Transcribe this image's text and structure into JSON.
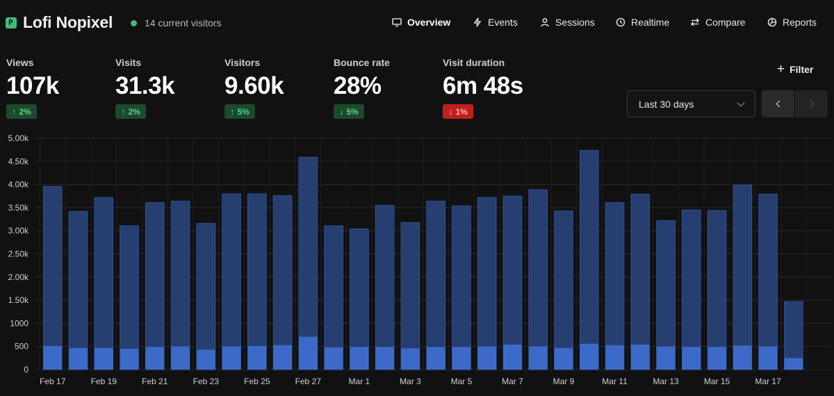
{
  "header": {
    "site_title": "Lofi Nopixel",
    "logo_icon": "p-logo-icon",
    "live_visitors": "14 current visitors",
    "nav": [
      {
        "label": "Overview",
        "icon": "monitor-icon",
        "active": true
      },
      {
        "label": "Events",
        "icon": "bolt-icon",
        "active": false
      },
      {
        "label": "Sessions",
        "icon": "user-icon",
        "active": false
      },
      {
        "label": "Realtime",
        "icon": "clock-icon",
        "active": false
      },
      {
        "label": "Compare",
        "icon": "arrows-icon",
        "active": false
      },
      {
        "label": "Reports",
        "icon": "pie-icon",
        "active": false
      }
    ]
  },
  "metrics": [
    {
      "label": "Views",
      "value": "107k",
      "change": "2%",
      "direction": "up"
    },
    {
      "label": "Visits",
      "value": "31.3k",
      "change": "2%",
      "direction": "up"
    },
    {
      "label": "Visitors",
      "value": "9.60k",
      "change": "5%",
      "direction": "up"
    },
    {
      "label": "Bounce rate",
      "value": "28%",
      "change": "5%",
      "direction": "down-good"
    },
    {
      "label": "Visit duration",
      "value": "6m 48s",
      "change": "1%",
      "direction": "down-bad"
    }
  ],
  "controls": {
    "filter_label": "Filter",
    "date_range": "Last 30 days"
  },
  "colors": {
    "background": "#111111",
    "views_bar": "#263e70",
    "visitors_bar": "#3c6ac8",
    "positive": "#5bd38a",
    "negative": "#c21f1f"
  },
  "chart_data": {
    "type": "bar",
    "stacked": "overlay",
    "ylim": [
      0,
      5000
    ],
    "y_ticks": [
      0,
      500,
      1000,
      1500,
      2000,
      2500,
      3000,
      3500,
      4000,
      4500,
      5000
    ],
    "y_tick_labels": [
      "0",
      "500",
      "1000",
      "1.50k",
      "2.00k",
      "2.50k",
      "3.00k",
      "3.50k",
      "4.00k",
      "4.50k",
      "5.00k"
    ],
    "categories": [
      "Feb 17",
      "Feb 18",
      "Feb 19",
      "Feb 20",
      "Feb 21",
      "Feb 22",
      "Feb 23",
      "Feb 24",
      "Feb 25",
      "Feb 26",
      "Feb 27",
      "Feb 28",
      "Mar 1",
      "Mar 2",
      "Mar 3",
      "Mar 4",
      "Mar 5",
      "Mar 6",
      "Mar 7",
      "Mar 8",
      "Mar 9",
      "Mar 10",
      "Mar 11",
      "Mar 12",
      "Mar 13",
      "Mar 14",
      "Mar 15",
      "Mar 16",
      "Mar 17",
      "Mar 18"
    ],
    "x_tick_labels": [
      "Feb 17",
      "Feb 19",
      "Feb 21",
      "Feb 23",
      "Feb 25",
      "Feb 27",
      "Mar 1",
      "Mar 3",
      "Mar 5",
      "Mar 7",
      "Mar 9",
      "Mar 11",
      "Mar 13",
      "Mar 15",
      "Mar 17"
    ],
    "series": [
      {
        "values": [
          3960,
          3420,
          3720,
          3110,
          3610,
          3640,
          3160,
          3800,
          3800,
          3760,
          4590,
          3110,
          3040,
          3550,
          3180,
          3640,
          3540,
          3720,
          3750,
          3890,
          3430,
          4740,
          3610,
          3790,
          3220,
          3450,
          3440,
          3990,
          3790,
          1470
        ]
      },
      {
        "values": [
          510,
          470,
          470,
          450,
          490,
          500,
          430,
          500,
          510,
          530,
          710,
          480,
          490,
          490,
          460,
          490,
          490,
          500,
          540,
          500,
          470,
          560,
          530,
          540,
          500,
          490,
          490,
          520,
          500,
          250
        ]
      }
    ],
    "grid": true,
    "legend": "none"
  }
}
